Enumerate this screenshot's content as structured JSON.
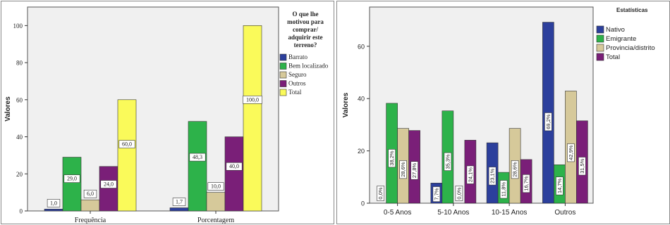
{
  "charts": [
    {
      "type": "bar",
      "ylabel": "Valores",
      "xlabel": "",
      "ylim": [
        0,
        110
      ],
      "yticks": [
        "0",
        "20",
        "40",
        "60",
        "80",
        "100"
      ],
      "categories": [
        "Frequência",
        "Porcentagem"
      ],
      "legend": {
        "title_lines": [
          "O que lhe",
          "motivou para",
          "comprar/",
          "adquirir este",
          "terreno?"
        ],
        "placement": "right"
      },
      "series": [
        {
          "name": "Barrato",
          "color": "#2c3f9c",
          "values": [
            1.0,
            1.7
          ],
          "labels": [
            "1,0",
            "1,7"
          ]
        },
        {
          "name": "Bem localizado",
          "color": "#2db24a",
          "values": [
            29.0,
            48.3
          ],
          "labels": [
            "29,0",
            "48,3"
          ]
        },
        {
          "name": "Seguro",
          "color": "#d6c99a",
          "values": [
            6.0,
            10.0
          ],
          "labels": [
            "6,0",
            "10,0"
          ]
        },
        {
          "name": "Outros",
          "color": "#7a1f78",
          "values": [
            24.0,
            40.0
          ],
          "labels": [
            "24,0",
            "40,0"
          ]
        },
        {
          "name": "Total",
          "color": "#fafa5a",
          "values": [
            60.0,
            100.0
          ],
          "labels": [
            "60,0",
            "100,0"
          ]
        }
      ]
    },
    {
      "type": "bar",
      "ylabel": "Valores",
      "xlabel": "",
      "ylim": [
        0,
        75
      ],
      "yticks": [
        "0",
        "20",
        "40",
        "60"
      ],
      "categories": [
        "0-5 Anos",
        "5-10 Anos",
        "10-15 Anos",
        "Outros"
      ],
      "legend": {
        "title_lines": [
          "Estatísticas"
        ],
        "placement": "top-right"
      },
      "series": [
        {
          "name": "Nativo",
          "color": "#2c3f9c",
          "values": [
            0.0,
            7.7,
            23.1,
            69.2
          ],
          "labels": [
            "0,0%",
            "7,7%",
            "23,1%",
            "69,2%"
          ]
        },
        {
          "name": "Emigrante",
          "color": "#2db24a",
          "values": [
            38.2,
            35.3,
            11.8,
            14.7
          ],
          "labels": [
            "38,2%",
            "35,3%",
            "11,8%",
            "14,7%"
          ]
        },
        {
          "name": "Provincia/distrito",
          "color": "#d6c99a",
          "values": [
            28.6,
            0.0,
            28.6,
            42.9
          ],
          "labels": [
            "28,6%",
            "0,0%",
            "28,6%",
            "42,9%"
          ]
        },
        {
          "name": "Total",
          "color": "#7a1f78",
          "values": [
            27.8,
            24.1,
            16.7,
            31.5
          ],
          "labels": [
            "27,8%",
            "24,1%",
            "16,7%",
            "31,5%"
          ]
        }
      ]
    }
  ]
}
